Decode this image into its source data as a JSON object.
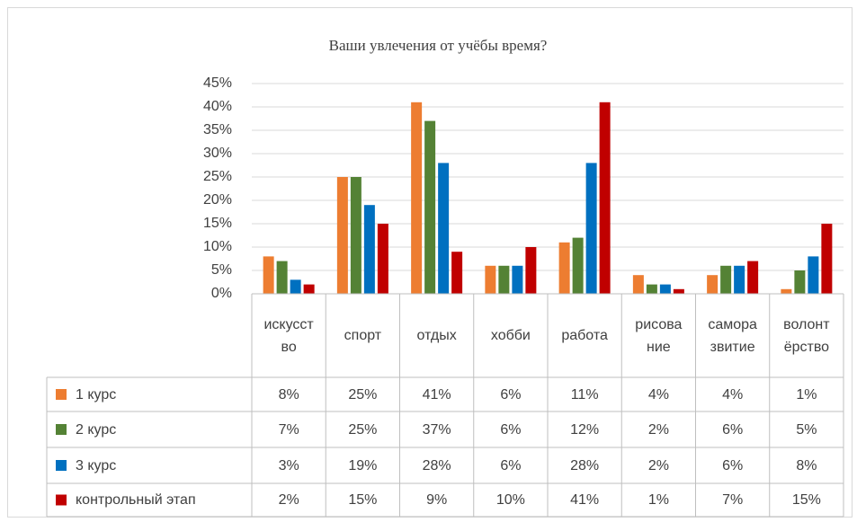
{
  "chart_data": {
    "type": "bar",
    "title": "Ваши увлечения от учёбы время?",
    "categories": [
      "искусство",
      "спорт",
      "отдых",
      "хобби",
      "работа",
      "рисование",
      "саморазвитие",
      "волонтёрство"
    ],
    "series": [
      {
        "name": "1 курс",
        "color": "#ed7d31",
        "values": [
          8,
          25,
          41,
          6,
          11,
          4,
          4,
          1
        ],
        "value_labels": [
          "8%",
          "25%",
          "41%",
          "6%",
          "11%",
          "4%",
          "4%",
          "1%"
        ]
      },
      {
        "name": "2  курс",
        "color": "#548235",
        "values": [
          7,
          25,
          37,
          6,
          12,
          2,
          6,
          5
        ],
        "value_labels": [
          "7%",
          "25%",
          "37%",
          "6%",
          "12%",
          "2%",
          "6%",
          "5%"
        ]
      },
      {
        "name": "3 курс",
        "color": "#0070c0",
        "values": [
          3,
          19,
          28,
          6,
          28,
          2,
          6,
          8
        ],
        "value_labels": [
          "3%",
          "19%",
          "28%",
          "6%",
          "28%",
          "2%",
          "6%",
          "8%"
        ]
      },
      {
        "name": "контрольный этап",
        "color": "#c00000",
        "values": [
          2,
          15,
          9,
          10,
          41,
          1,
          7,
          15
        ],
        "value_labels": [
          "2%",
          "15%",
          "9%",
          "10%",
          "41%",
          "1%",
          "7%",
          "15%"
        ]
      }
    ],
    "ylim": [
      0,
      45
    ],
    "yticks": [
      {
        "value": 0,
        "label": "0%"
      },
      {
        "value": 5,
        "label": "5%"
      },
      {
        "value": 10,
        "label": "10%"
      },
      {
        "value": 15,
        "label": "15%"
      },
      {
        "value": 20,
        "label": "20%"
      },
      {
        "value": 25,
        "label": "25%"
      },
      {
        "value": 30,
        "label": "30%"
      },
      {
        "value": 35,
        "label": "35%"
      },
      {
        "value": 40,
        "label": "40%"
      },
      {
        "value": 45,
        "label": "45%"
      }
    ],
    "grid": true
  }
}
